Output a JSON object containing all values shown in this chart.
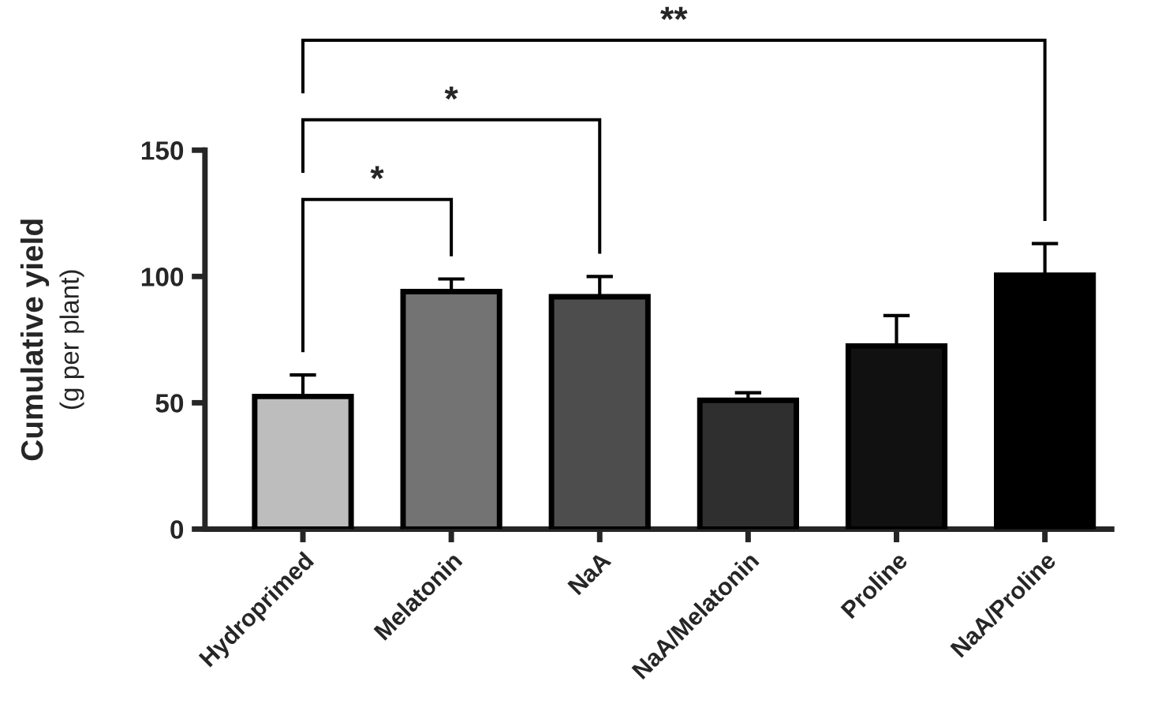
{
  "chart_data": {
    "type": "bar",
    "ylabel": "Cumulative yield\n(g per plant)",
    "categories": [
      "Hydroprimed",
      "Melatonin",
      "NaA",
      "NaA/Melatonin",
      "Proline",
      "NaA/Proline"
    ],
    "values": [
      52.5,
      94,
      92,
      51,
      72.5,
      100.5
    ],
    "errors": [
      8.5,
      5,
      8,
      3,
      12,
      12.5
    ],
    "colors": [
      "#bdbdbd",
      "#737373",
      "#4d4d4d",
      "#2f2f2f",
      "#111111",
      "#000000"
    ],
    "ylim": [
      0,
      150
    ],
    "yticks": [
      0,
      50,
      100,
      150
    ],
    "annotations": [
      "*",
      "*",
      "**"
    ],
    "grid": false,
    "legend": false
  }
}
